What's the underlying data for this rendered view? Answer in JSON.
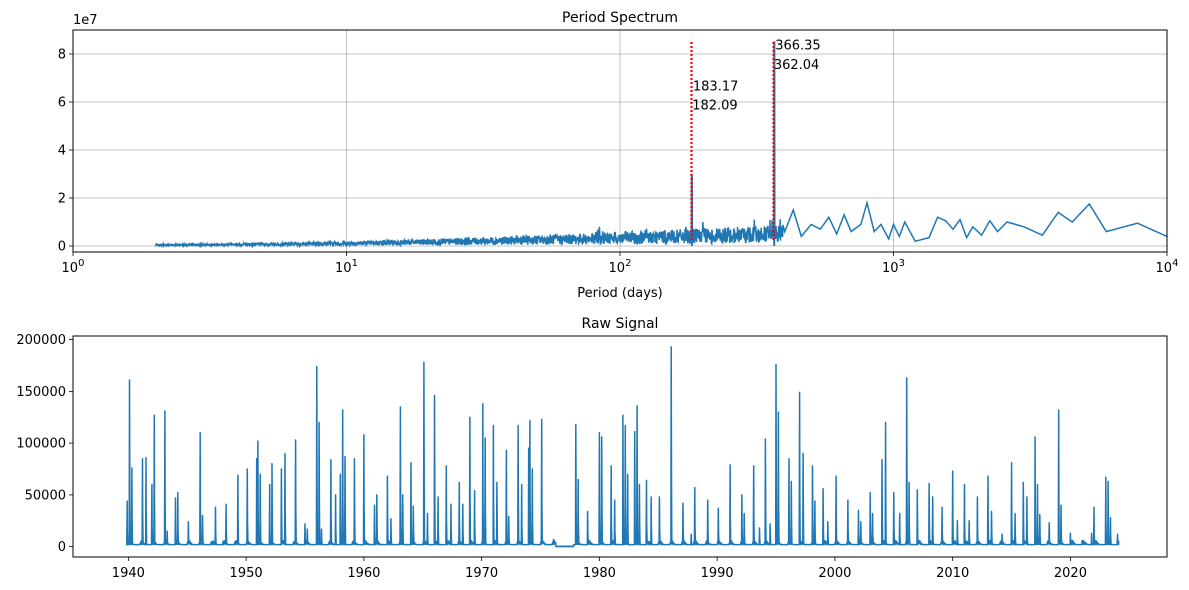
{
  "chart_data": [
    {
      "type": "line",
      "title": "Period Spectrum",
      "xlabel": "Period (days)",
      "ylabel": "",
      "xscale": "log",
      "xlim": [
        1,
        10000
      ],
      "ylim": [
        -0.25,
        9.0
      ],
      "y_multiplier_label": "1e7",
      "grid": true,
      "x_ticks": [
        {
          "value": 1,
          "base": "10",
          "exp": "0"
        },
        {
          "value": 10,
          "base": "10",
          "exp": "1"
        },
        {
          "value": 100,
          "base": "10",
          "exp": "2"
        },
        {
          "value": 1000,
          "base": "10",
          "exp": "3"
        },
        {
          "value": 10000,
          "base": "10",
          "exp": "4"
        }
      ],
      "y_ticks": [
        {
          "value": 0,
          "label": "0"
        },
        {
          "value": 2,
          "label": "2"
        },
        {
          "value": 4,
          "label": "4"
        },
        {
          "value": 6,
          "label": "6"
        },
        {
          "value": 8,
          "label": "8"
        }
      ],
      "series_color": "#1f77b4",
      "marker_color": "#ff0000",
      "peaks": [
        {
          "period": 183.17,
          "power": 2.9
        },
        {
          "period": 366.35,
          "power": 8.5
        }
      ],
      "markers": [
        {
          "period": 182.6,
          "top": 8.5
        },
        {
          "period": 364.2,
          "top": 8.5
        }
      ],
      "annotations": [
        {
          "text": "366.35",
          "period": 366.35,
          "y": 7.6
        },
        {
          "text": "362.04",
          "period": 362.04,
          "y": 6.8
        },
        {
          "text": "183.17",
          "period": 183.17,
          "y": 5.9
        },
        {
          "text": "182.09",
          "period": 182.09,
          "y": 5.1
        }
      ],
      "tail_points": [
        [
          400,
          0.6
        ],
        [
          430,
          1.5
        ],
        [
          460,
          0.4
        ],
        [
          500,
          0.9
        ],
        [
          540,
          0.7
        ],
        [
          580,
          1.2
        ],
        [
          620,
          0.5
        ],
        [
          660,
          1.3
        ],
        [
          700,
          0.6
        ],
        [
          760,
          0.9
        ],
        [
          800,
          1.8
        ],
        [
          850,
          0.6
        ],
        [
          900,
          0.9
        ],
        [
          960,
          0.3
        ],
        [
          1000,
          0.9
        ],
        [
          1050,
          0.4
        ],
        [
          1100,
          1.0
        ],
        [
          1200,
          0.2
        ],
        [
          1350,
          0.35
        ],
        [
          1450,
          1.2
        ],
        [
          1550,
          1.05
        ],
        [
          1650,
          0.7
        ],
        [
          1750,
          1.1
        ],
        [
          1850,
          0.35
        ],
        [
          1950,
          0.8
        ],
        [
          2100,
          0.45
        ],
        [
          2250,
          1.05
        ],
        [
          2400,
          0.6
        ],
        [
          2600,
          1.0
        ],
        [
          3000,
          0.8
        ],
        [
          3500,
          0.45
        ],
        [
          4000,
          1.4
        ],
        [
          4500,
          1.0
        ],
        [
          5200,
          1.75
        ],
        [
          6000,
          0.6
        ],
        [
          7800,
          0.95
        ],
        [
          10000,
          0.4
        ]
      ]
    },
    {
      "type": "line",
      "title": "Raw Signal",
      "xlabel": "",
      "ylabel": "",
      "xlim": [
        1935.3,
        2028.2
      ],
      "ylim": [
        -10000,
        203500
      ],
      "grid": false,
      "x_ticks": [
        "1940",
        "1950",
        "1960",
        "1970",
        "1980",
        "1990",
        "2000",
        "2010",
        "2020"
      ],
      "x_tick_values": [
        1940,
        1950,
        1960,
        1970,
        1980,
        1990,
        2000,
        2010,
        2020
      ],
      "y_ticks": [
        "0",
        "50000",
        "100000",
        "150000",
        "200000"
      ],
      "y_tick_values": [
        0,
        50000,
        100000,
        150000,
        200000
      ],
      "series_color": "#1f77b4",
      "data_range": [
        1939.8,
        2024.1
      ],
      "peaks": [
        [
          1939.9,
          44000
        ],
        [
          1940.1,
          161000
        ],
        [
          1940.3,
          76000
        ],
        [
          1941.2,
          85000
        ],
        [
          1941.5,
          86000
        ],
        [
          1942.0,
          60000
        ],
        [
          1942.2,
          127000
        ],
        [
          1943.1,
          131000
        ],
        [
          1943.3,
          15000
        ],
        [
          1944.0,
          47000
        ],
        [
          1944.2,
          52000
        ],
        [
          1945.1,
          24000
        ],
        [
          1946.1,
          110000
        ],
        [
          1946.3,
          30000
        ],
        [
          1947.4,
          38000
        ],
        [
          1948.3,
          41000
        ],
        [
          1949.3,
          69000
        ],
        [
          1950.1,
          75000
        ],
        [
          1950.9,
          85000
        ],
        [
          1951.0,
          102000
        ],
        [
          1951.2,
          70000
        ],
        [
          1952.0,
          60000
        ],
        [
          1952.2,
          80000
        ],
        [
          1953.0,
          75000
        ],
        [
          1953.3,
          90000
        ],
        [
          1954.2,
          103000
        ],
        [
          1955.0,
          22000
        ],
        [
          1955.2,
          17000
        ],
        [
          1956.0,
          174000
        ],
        [
          1956.2,
          120000
        ],
        [
          1956.4,
          17000
        ],
        [
          1957.2,
          84000
        ],
        [
          1957.6,
          50000
        ],
        [
          1958.0,
          70000
        ],
        [
          1958.2,
          132000
        ],
        [
          1958.4,
          87000
        ],
        [
          1959.2,
          85000
        ],
        [
          1960.0,
          108000
        ],
        [
          1960.9,
          40000
        ],
        [
          1961.1,
          50000
        ],
        [
          1962.0,
          68000
        ],
        [
          1962.3,
          27000
        ],
        [
          1963.1,
          135000
        ],
        [
          1963.3,
          50000
        ],
        [
          1964.0,
          81000
        ],
        [
          1964.2,
          39000
        ],
        [
          1965.1,
          178000
        ],
        [
          1965.4,
          32000
        ],
        [
          1966.0,
          146000
        ],
        [
          1966.3,
          48000
        ],
        [
          1967.0,
          78000
        ],
        [
          1967.4,
          41000
        ],
        [
          1968.1,
          62000
        ],
        [
          1968.4,
          41000
        ],
        [
          1969.0,
          125000
        ],
        [
          1969.4,
          54000
        ],
        [
          1970.1,
          138000
        ],
        [
          1970.3,
          105000
        ],
        [
          1971.0,
          117000
        ],
        [
          1971.3,
          62000
        ],
        [
          1972.1,
          93000
        ],
        [
          1972.3,
          29000
        ],
        [
          1973.1,
          117000
        ],
        [
          1973.4,
          60000
        ],
        [
          1974.0,
          95000
        ],
        [
          1974.1,
          122000
        ],
        [
          1974.3,
          75000
        ],
        [
          1975.1,
          123000
        ],
        [
          1976.1,
          7000
        ],
        [
          1978.0,
          118000
        ],
        [
          1978.2,
          65000
        ],
        [
          1979.0,
          34000
        ],
        [
          1980.0,
          110000
        ],
        [
          1980.2,
          106000
        ],
        [
          1981.0,
          78000
        ],
        [
          1981.3,
          45000
        ],
        [
          1982.0,
          127000
        ],
        [
          1982.2,
          117000
        ],
        [
          1982.4,
          70000
        ],
        [
          1983.0,
          111000
        ],
        [
          1983.2,
          136000
        ],
        [
          1983.4,
          60000
        ],
        [
          1984.0,
          64000
        ],
        [
          1984.4,
          48000
        ],
        [
          1985.1,
          48000
        ],
        [
          1986.1,
          193000
        ],
        [
          1987.1,
          42000
        ],
        [
          1987.8,
          12000
        ],
        [
          1988.1,
          57000
        ],
        [
          1989.2,
          45000
        ],
        [
          1990.1,
          37000
        ],
        [
          1991.1,
          79000
        ],
        [
          1992.1,
          50000
        ],
        [
          1992.3,
          32000
        ],
        [
          1993.1,
          78000
        ],
        [
          1993.6,
          18000
        ],
        [
          1994.1,
          104000
        ],
        [
          1994.5,
          22000
        ],
        [
          1995.0,
          176000
        ],
        [
          1995.2,
          130000
        ],
        [
          1996.1,
          85000
        ],
        [
          1996.3,
          63000
        ],
        [
          1997.0,
          149000
        ],
        [
          1997.3,
          90000
        ],
        [
          1998.1,
          78000
        ],
        [
          1998.3,
          44000
        ],
        [
          1999.0,
          56000
        ],
        [
          1999.4,
          24000
        ],
        [
          2000.1,
          68000
        ],
        [
          2001.1,
          45000
        ],
        [
          2002.0,
          35000
        ],
        [
          2002.2,
          24000
        ],
        [
          2003.0,
          52000
        ],
        [
          2003.2,
          32000
        ],
        [
          2004.0,
          84000
        ],
        [
          2004.3,
          120000
        ],
        [
          2005.0,
          52000
        ],
        [
          2005.5,
          32000
        ],
        [
          2006.1,
          163000
        ],
        [
          2006.3,
          62000
        ],
        [
          2007.0,
          55000
        ],
        [
          2008.0,
          61000
        ],
        [
          2008.3,
          48000
        ],
        [
          2009.1,
          38000
        ],
        [
          2010.0,
          73000
        ],
        [
          2010.4,
          25000
        ],
        [
          2011.0,
          60000
        ],
        [
          2011.4,
          25000
        ],
        [
          2012.1,
          48000
        ],
        [
          2013.0,
          68000
        ],
        [
          2013.3,
          34000
        ],
        [
          2014.2,
          12000
        ],
        [
          2015.0,
          81000
        ],
        [
          2015.3,
          32000
        ],
        [
          2016.0,
          62000
        ],
        [
          2016.3,
          48000
        ],
        [
          2017.0,
          106000
        ],
        [
          2017.2,
          60000
        ],
        [
          2017.4,
          31000
        ],
        [
          2018.2,
          23000
        ],
        [
          2019.0,
          132000
        ],
        [
          2019.2,
          40000
        ],
        [
          2020.0,
          13000
        ],
        [
          2021.0,
          6000
        ],
        [
          2021.8,
          13000
        ],
        [
          2022.0,
          38000
        ],
        [
          2023.0,
          67000
        ],
        [
          2023.2,
          63000
        ],
        [
          2023.4,
          28000
        ],
        [
          2024.0,
          12000
        ]
      ]
    }
  ]
}
